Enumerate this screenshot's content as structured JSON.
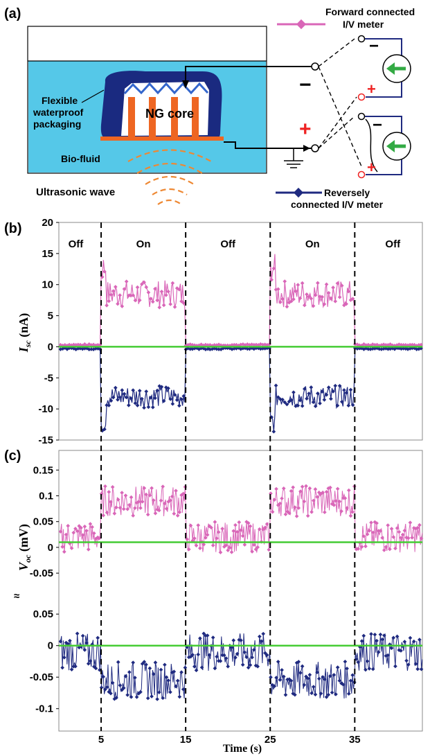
{
  "colors": {
    "forward": "#d966b8",
    "reverse": "#1f2a80",
    "zero": "#44cc33",
    "fluid": "#55c8e8",
    "package": "#1a2a80",
    "electrode": "#ee6622",
    "wave": "#ee8833",
    "meter_green": "#33aa44",
    "plus": "#ee2222"
  },
  "panel_a": {
    "label": "(a)",
    "packaging_label_line1": "Flexible",
    "packaging_label_line2": "waterproof",
    "packaging_label_line3": "packaging",
    "core_label": "NG core",
    "fluid_label": "Bio-fluid",
    "wave_label": "Ultrasonic wave",
    "minus_sign": "−",
    "plus_sign": "+",
    "meter_minus": "−",
    "meter_plus": "+",
    "forward_legend_line1": "Forward connected",
    "forward_legend_line2": "I/V meter",
    "reverse_legend_line1": "Reversely",
    "reverse_legend_line2": "connected I/V meter"
  },
  "chart_data": [
    {
      "panel": "(b)",
      "type": "line",
      "ylabel_main": "I",
      "ylabel_sub": "sc",
      "ylabel_unit": " (nA)",
      "xlim": [
        0,
        43
      ],
      "ylim": [
        -15,
        20
      ],
      "yticks": [
        "20",
        "15",
        "10",
        "5",
        "0",
        "-5",
        "-10",
        "-15"
      ],
      "ytick_values": [
        20,
        15,
        10,
        5,
        0,
        -5,
        -10,
        -15
      ],
      "regions": [
        {
          "label": "Off",
          "x": 2
        },
        {
          "label": "On",
          "x": 10
        },
        {
          "label": "Off",
          "x": 20
        },
        {
          "label": "On",
          "x": 30
        },
        {
          "label": "Off",
          "x": 39.5
        }
      ],
      "switch_times": [
        5,
        15,
        25,
        35
      ],
      "series": [
        {
          "role": "forward",
          "off_level": 0.3,
          "on_level": 8.5,
          "on_noise": 2.2
        },
        {
          "role": "reverse",
          "off_level": -0.3,
          "on_level": -8.0,
          "on_noise": 1.8
        }
      ]
    },
    {
      "panel": "(c)",
      "type": "line",
      "ylabel_main": "V",
      "ylabel_sub": "oc",
      "ylabel_unit": " (mV)",
      "xlabel": "Time (s)",
      "xlim": [
        0,
        43
      ],
      "x_ticks": [
        "5",
        "15",
        "25",
        "35"
      ],
      "x_tick_values": [
        5,
        15,
        25,
        35
      ],
      "break_symbol": "≈",
      "upper": {
        "yticks": [
          "0.15",
          "0.1",
          "0.05",
          "0",
          "-0.05"
        ],
        "ytick_values": [
          0.15,
          0.1,
          0.05,
          0,
          -0.05
        ],
        "ylim": [
          -0.07,
          0.18
        ],
        "zero_level": 0.01,
        "series": {
          "role": "forward",
          "off_level": 0.02,
          "on_level": 0.09,
          "noise": 0.03
        }
      },
      "lower": {
        "yticks": [
          "0.05",
          "0",
          "-0.05",
          "-0.1"
        ],
        "ytick_values": [
          0.05,
          0,
          -0.05,
          -0.1
        ],
        "ylim": [
          -0.13,
          0.07
        ],
        "zero_level": 0.0,
        "series": {
          "role": "reverse",
          "off_level": -0.01,
          "on_level": -0.055,
          "noise": 0.03
        }
      }
    }
  ]
}
